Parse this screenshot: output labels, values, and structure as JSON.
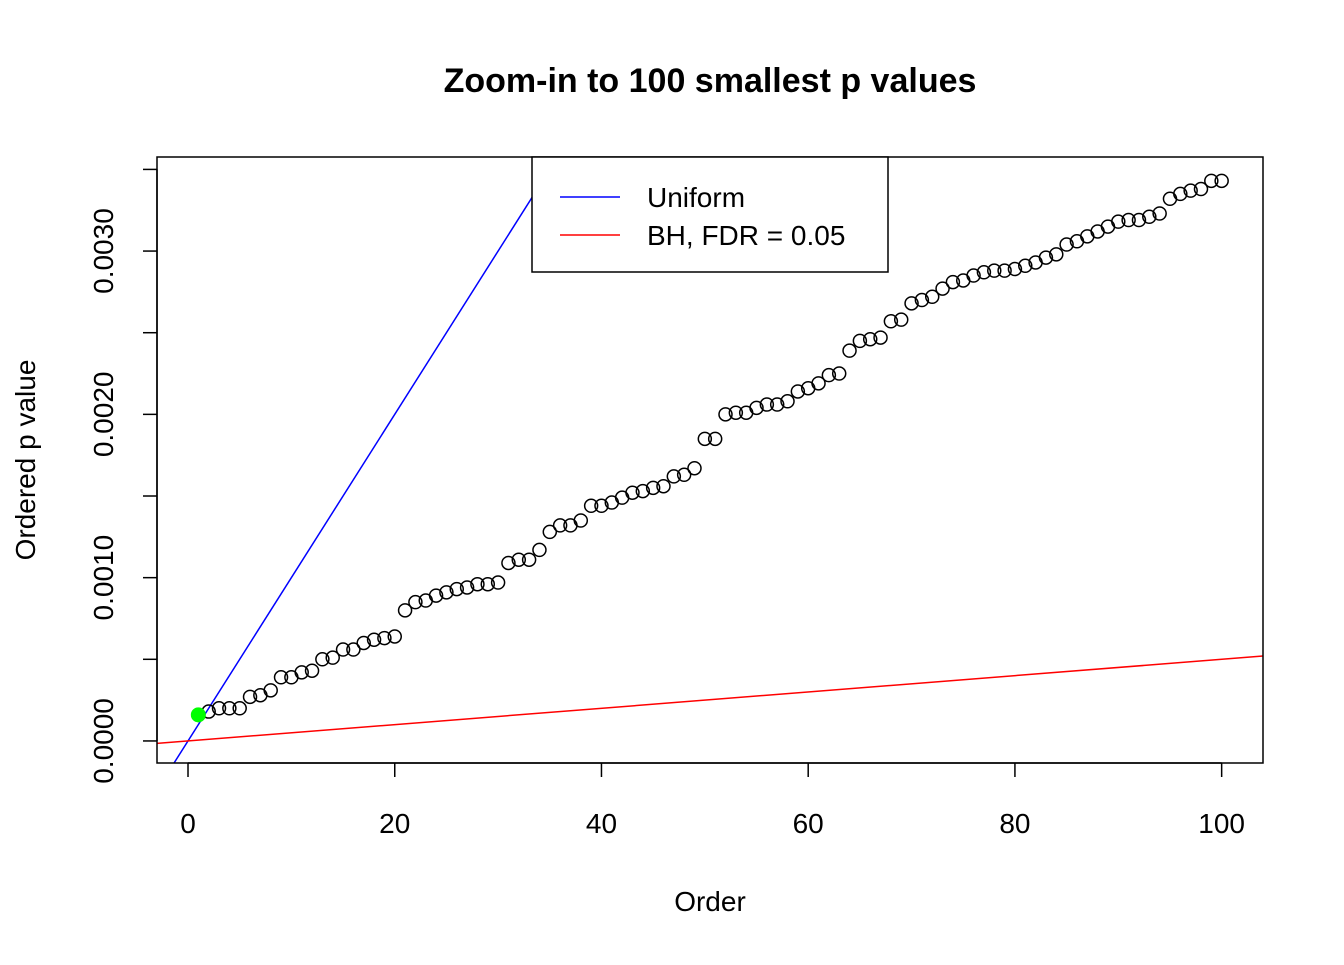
{
  "chart_data": {
    "type": "scatter",
    "title": "Zoom-in to 100 smallest p values",
    "xlabel": "Order",
    "ylabel": "Ordered p value",
    "xlim": [
      -3,
      104
    ],
    "ylim": [
      -0.000135,
      0.003576
    ],
    "x_ticks": [
      0,
      20,
      40,
      60,
      80,
      100
    ],
    "x_tick_labels": [
      "0",
      "20",
      "40",
      "60",
      "80",
      "100"
    ],
    "y_ticks": [
      0,
      0.0005,
      0.001,
      0.0015,
      0.002,
      0.0025,
      0.003,
      0.0035
    ],
    "y_tick_labels": [
      "0.0000",
      "",
      "0.0010",
      "",
      "0.0020",
      "",
      "0.0030",
      ""
    ],
    "grid": false,
    "legend_placement": "top-center",
    "points": {
      "x": [
        1,
        2,
        3,
        4,
        5,
        6,
        7,
        8,
        9,
        10,
        11,
        12,
        13,
        14,
        15,
        16,
        17,
        18,
        19,
        20,
        21,
        22,
        23,
        24,
        25,
        26,
        27,
        28,
        29,
        30,
        31,
        32,
        33,
        34,
        35,
        36,
        37,
        38,
        39,
        40,
        41,
        42,
        43,
        44,
        45,
        46,
        47,
        48,
        49,
        50,
        51,
        52,
        53,
        54,
        55,
        56,
        57,
        58,
        59,
        60,
        61,
        62,
        63,
        64,
        65,
        66,
        67,
        68,
        69,
        70,
        71,
        72,
        73,
        74,
        75,
        76,
        77,
        78,
        79,
        80,
        81,
        82,
        83,
        84,
        85,
        86,
        87,
        88,
        89,
        90,
        91,
        92,
        93,
        94,
        95,
        96,
        97,
        98,
        99,
        100
      ],
      "y": [
        0.00016,
        0.00018,
        0.0002,
        0.0002,
        0.0002,
        0.00027,
        0.00028,
        0.00031,
        0.00039,
        0.00039,
        0.00042,
        0.00043,
        0.0005,
        0.00051,
        0.00056,
        0.00056,
        0.0006,
        0.00062,
        0.00063,
        0.00064,
        0.0008,
        0.00085,
        0.00086,
        0.00089,
        0.00091,
        0.00093,
        0.00094,
        0.00096,
        0.00096,
        0.00097,
        0.00109,
        0.00111,
        0.00111,
        0.00117,
        0.00128,
        0.00132,
        0.00132,
        0.00135,
        0.00144,
        0.00144,
        0.00146,
        0.00149,
        0.00152,
        0.00153,
        0.00155,
        0.00156,
        0.00162,
        0.00163,
        0.00167,
        0.00185,
        0.00185,
        0.002,
        0.00201,
        0.00201,
        0.00204,
        0.00206,
        0.00206,
        0.00208,
        0.00214,
        0.00216,
        0.00219,
        0.00224,
        0.00225,
        0.00239,
        0.00245,
        0.00246,
        0.00247,
        0.00257,
        0.00258,
        0.00268,
        0.0027,
        0.00272,
        0.00277,
        0.00281,
        0.00282,
        0.00285,
        0.00287,
        0.00288,
        0.00288,
        0.00289,
        0.00291,
        0.00293,
        0.00296,
        0.00298,
        0.00304,
        0.00306,
        0.00309,
        0.00312,
        0.00315,
        0.00318,
        0.00319,
        0.00319,
        0.00321,
        0.00323,
        0.00332,
        0.00335,
        0.00337,
        0.00338,
        0.00343,
        0.00343
      ],
      "color": "#000000",
      "marker": "open-circle"
    },
    "highlight_point": {
      "x": 1,
      "y": 0.00016,
      "color": "#00ff00"
    },
    "lines": [
      {
        "name": "Uniform",
        "slope": 0.0001,
        "intercept": 0,
        "color": "#0000ff"
      },
      {
        "name": "BH, FDR = 0.05",
        "slope": 5e-06,
        "intercept": 0,
        "color": "#ff0000"
      }
    ]
  }
}
